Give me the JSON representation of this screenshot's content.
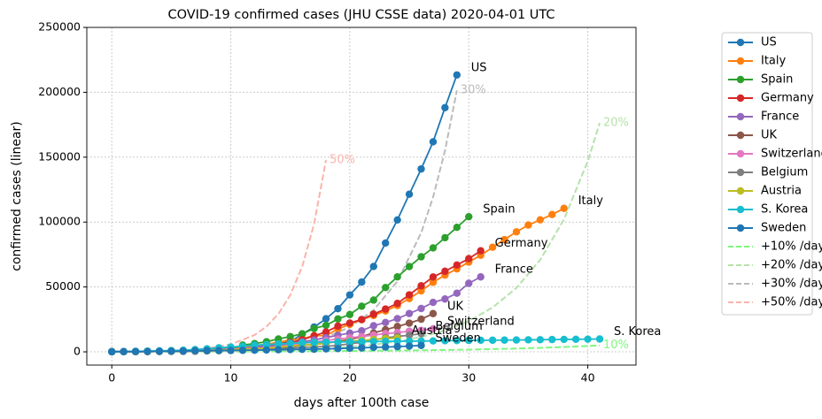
{
  "chart_data": {
    "type": "line",
    "title": "COVID-19 confirmed cases (JHU CSSE data) 2020-04-01 UTC",
    "x_label": "days after 100th case",
    "y_label": "confirmed cases (linear)",
    "xlim": [
      -2.1,
      44.05
    ],
    "ylim": [
      -10200,
      250000
    ],
    "xticks": [
      0,
      10,
      20,
      30,
      40
    ],
    "yticks": [
      0,
      50000,
      100000,
      150000,
      200000,
      250000
    ],
    "grid": true,
    "legend": "outside right",
    "series": [
      {
        "name": "US",
        "color": "#1f77b4",
        "values": [
          118,
          149,
          217,
          262,
          402,
          518,
          583,
          959,
          1281,
          1663,
          2179,
          2726,
          3499,
          4632,
          6421,
          7786,
          13680,
          19101,
          25493,
          33276,
          43847,
          53740,
          65778,
          83836,
          101657,
          121465,
          140909,
          161831,
          188172,
          213372
        ]
      },
      {
        "name": "Italy",
        "color": "#ff7f0e",
        "values": [
          155,
          229,
          322,
          453,
          655,
          888,
          1128,
          1694,
          2036,
          2502,
          3089,
          3858,
          4636,
          5883,
          7375,
          9172,
          10149,
          12462,
          12462,
          17660,
          21157,
          24747,
          27980,
          31506,
          35713,
          41035,
          47021,
          53578,
          59138,
          63927,
          69176,
          74386,
          80589,
          86498,
          92472,
          97689,
          101739,
          105792,
          110574
        ]
      },
      {
        "name": "Spain",
        "color": "#2ca02c",
        "values": [
          120,
          165,
          222,
          259,
          400,
          500,
          673,
          1073,
          1695,
          2277,
          2277,
          5232,
          6391,
          7798,
          9942,
          11748,
          13910,
          17963,
          20410,
          25374,
          28768,
          35136,
          39885,
          49515,
          57786,
          65719,
          73235,
          80110,
          87956,
          95923,
          104118
        ]
      },
      {
        "name": "Germany",
        "color": "#d62728",
        "values": [
          130,
          159,
          196,
          262,
          482,
          670,
          799,
          1040,
          1176,
          1457,
          1908,
          2078,
          3675,
          4585,
          5795,
          7272,
          9257,
          12327,
          15320,
          19848,
          22213,
          24873,
          29056,
          32986,
          37323,
          43938,
          50871,
          57695,
          62095,
          66885,
          71808,
          77872
        ]
      },
      {
        "name": "France",
        "color": "#9467bd",
        "values": [
          130,
          191,
          204,
          288,
          380,
          656,
          957,
          1136,
          1219,
          1794,
          2293,
          2293,
          3681,
          4496,
          4532,
          6683,
          7715,
          9124,
          10970,
          12758,
          14463,
          16243,
          20123,
          22622,
          25600,
          29551,
          33402,
          38105,
          40708,
          45170,
          52827,
          57749
        ]
      },
      {
        "name": "UK",
        "color": "#8c564b",
        "values": [
          115,
          163,
          206,
          273,
          321,
          382,
          456,
          456,
          798,
          1140,
          1140,
          1543,
          1950,
          2626,
          2689,
          3983,
          5018,
          5683,
          6650,
          8077,
          9529,
          11658,
          14543,
          17089,
          19522,
          22141,
          25150,
          29474
        ]
      },
      {
        "name": "Switzerland",
        "color": "#e377c2",
        "values": [
          114,
          214,
          268,
          337,
          374,
          491,
          652,
          652,
          1139,
          1359,
          2200,
          2200,
          2700,
          3028,
          4075,
          5294,
          6575,
          7474,
          8795,
          9877,
          10897,
          11811,
          12928,
          14076,
          14829,
          15922,
          16605,
          17768
        ]
      },
      {
        "name": "Belgium",
        "color": "#7f7f7f",
        "values": [
          109,
          169,
          200,
          239,
          267,
          314,
          314,
          559,
          689,
          886,
          1058,
          1243,
          1486,
          1795,
          2257,
          2815,
          3401,
          3743,
          4269,
          4937,
          6235,
          7284,
          9134,
          10836,
          11899,
          12775,
          13964
        ]
      },
      {
        "name": "Austria",
        "color": "#bcbd22",
        "values": [
          104,
          131,
          182,
          246,
          302,
          504,
          655,
          860,
          1018,
          1332,
          1646,
          2013,
          2388,
          2814,
          3582,
          4474,
          5283,
          5588,
          6909,
          7657,
          8271,
          8788,
          9618,
          10180,
          10711
        ]
      },
      {
        "name": "S. Korea",
        "color": "#17becf",
        "values": [
          104,
          204,
          433,
          602,
          833,
          977,
          1261,
          1766,
          2337,
          3150,
          3736,
          4335,
          5186,
          5621,
          6088,
          6593,
          7041,
          7314,
          7478,
          7513,
          7755,
          7869,
          7979,
          8086,
          8162,
          8236,
          8320,
          8413,
          8565,
          8652,
          8799,
          8897,
          8961,
          9037,
          9137,
          9241,
          9332,
          9478,
          9583,
          9661,
          9786,
          9887
        ]
      },
      {
        "name": "Sweden",
        "color": "#1f77b4",
        "values": [
          101,
          161,
          203,
          248,
          355,
          500,
          599,
          814,
          961,
          1022,
          1103,
          1190,
          1279,
          1439,
          1639,
          1763,
          1934,
          2046,
          2286,
          2526,
          2840,
          3069,
          3447,
          3700,
          4028,
          4435,
          4947
        ]
      },
      {
        "name": "+10% /day",
        "color": "#7ef77e",
        "dashed": true,
        "end_label": "10%",
        "x": [
          0,
          2,
          4,
          6,
          8,
          10,
          12,
          14,
          16,
          18,
          20,
          22,
          24,
          26,
          28,
          30,
          32,
          34,
          36,
          38,
          40,
          41
        ],
        "values": [
          100,
          121,
          146,
          177,
          214,
          259,
          314,
          380,
          459,
          556,
          673,
          814,
          985,
          1192,
          1442,
          1745,
          2111,
          2555,
          3091,
          3740,
          4526,
          4978
        ]
      },
      {
        "name": "+20% /day",
        "color": "#b6e2aa",
        "dashed": true,
        "end_label": "20%",
        "x": [
          0,
          2,
          4,
          6,
          8,
          10,
          12,
          14,
          16,
          18,
          20,
          22,
          24,
          26,
          28,
          30,
          32,
          34,
          36,
          38,
          40,
          41
        ],
        "values": [
          100,
          144,
          207,
          299,
          430,
          619,
          892,
          1284,
          1849,
          2662,
          3834,
          5521,
          7950,
          11448,
          16484,
          23738,
          34182,
          49222,
          70880,
          102068,
          146977,
          176373
        ]
      },
      {
        "name": "+30% /day",
        "color": "#bbbbbb",
        "dashed": true,
        "end_label": "30%",
        "x": [
          0,
          2,
          4,
          6,
          8,
          10,
          12,
          14,
          16,
          18,
          20,
          22,
          24,
          26,
          27,
          28,
          29
        ],
        "values": [
          100,
          169,
          286,
          483,
          816,
          1379,
          2330,
          3937,
          6654,
          11246,
          19005,
          32118,
          54280,
          91733,
          119253,
          155029,
          201538
        ]
      },
      {
        "name": "+50% /day",
        "color": "#f9b4ab",
        "dashed": true,
        "end_label": "50%",
        "x": [
          0,
          2,
          4,
          6,
          8,
          10,
          12,
          13,
          14,
          15,
          16,
          17,
          18
        ],
        "values": [
          100,
          225,
          506,
          1139,
          2563,
          5767,
          12975,
          19462,
          29193,
          43789,
          65684,
          98526,
          147789
        ]
      }
    ]
  }
}
